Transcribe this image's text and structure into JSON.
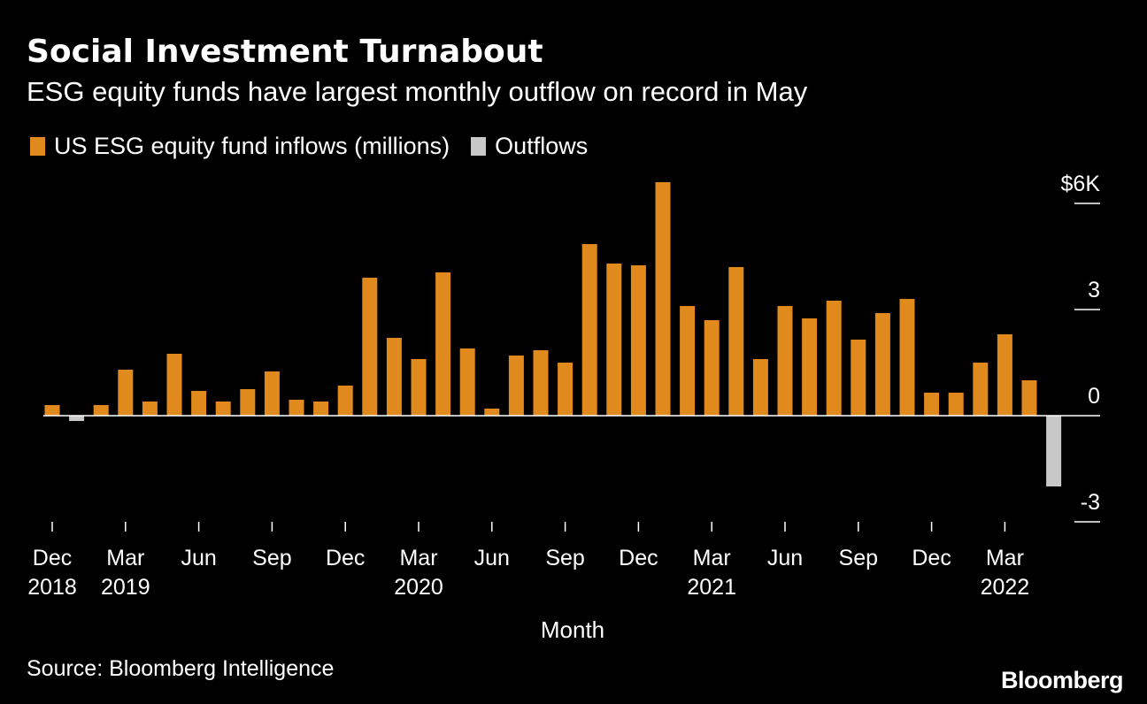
{
  "title": "Social Investment Turnabout",
  "subtitle": "ESG equity funds have largest monthly outflow on record in May",
  "source": "Source: Bloomberg Intelligence",
  "brand": "Bloomberg",
  "colors": {
    "inflow": "#e08a1e",
    "outflow": "#c8c8c8",
    "background": "#000000",
    "text": "#ffffff"
  },
  "chart_data": {
    "type": "bar",
    "title": "Social Investment Turnabout",
    "subtitle": "ESG equity funds have largest monthly outflow on record in May",
    "xlabel": "Month",
    "ylabel": "",
    "ylim": [
      -3,
      6
    ],
    "yticks": [
      {
        "value": 6,
        "label": "$6K"
      },
      {
        "value": 3,
        "label": "3"
      },
      {
        "value": 0,
        "label": "0"
      },
      {
        "value": -3,
        "label": "-3"
      }
    ],
    "legend": [
      {
        "name": "US ESG equity fund inflows (millions)",
        "color": "#e08a1e"
      },
      {
        "name": "Outflows",
        "color": "#c8c8c8"
      }
    ],
    "categories": [
      "Dec 2018",
      "Jan 2019",
      "Feb 2019",
      "Mar 2019",
      "Apr 2019",
      "May 2019",
      "Jun 2019",
      "Jul 2019",
      "Aug 2019",
      "Sep 2019",
      "Oct 2019",
      "Nov 2019",
      "Dec 2019",
      "Jan 2020",
      "Feb 2020",
      "Mar 2020",
      "Apr 2020",
      "May 2020",
      "Jun 2020",
      "Jul 2020",
      "Aug 2020",
      "Sep 2020",
      "Oct 2020",
      "Nov 2020",
      "Dec 2020",
      "Jan 2021",
      "Feb 2021",
      "Mar 2021",
      "Apr 2021",
      "May 2021",
      "Jun 2021",
      "Jul 2021",
      "Aug 2021",
      "Sep 2021",
      "Oct 2021",
      "Nov 2021",
      "Dec 2021",
      "Jan 2022",
      "Feb 2022",
      "Mar 2022",
      "Apr 2022",
      "May 2022"
    ],
    "values": [
      0.3,
      -0.15,
      0.3,
      1.3,
      0.4,
      1.75,
      0.7,
      0.4,
      0.75,
      1.25,
      0.45,
      0.4,
      0.85,
      3.9,
      2.2,
      1.6,
      4.05,
      1.9,
      0.2,
      1.7,
      1.85,
      1.5,
      4.85,
      4.3,
      4.25,
      6.6,
      3.1,
      2.7,
      4.2,
      1.6,
      3.1,
      2.75,
      3.25,
      2.15,
      2.9,
      3.3,
      0.65,
      0.65,
      1.5,
      2.3,
      1.0,
      -2.0
    ],
    "xticks": [
      {
        "index": 0,
        "month": "Dec",
        "year": "2018"
      },
      {
        "index": 3,
        "month": "Mar",
        "year": "2019"
      },
      {
        "index": 6,
        "month": "Jun",
        "year": ""
      },
      {
        "index": 9,
        "month": "Sep",
        "year": ""
      },
      {
        "index": 12,
        "month": "Dec",
        "year": ""
      },
      {
        "index": 15,
        "month": "Mar",
        "year": "2020"
      },
      {
        "index": 18,
        "month": "Jun",
        "year": ""
      },
      {
        "index": 21,
        "month": "Sep",
        "year": ""
      },
      {
        "index": 24,
        "month": "Dec",
        "year": ""
      },
      {
        "index": 27,
        "month": "Mar",
        "year": "2021"
      },
      {
        "index": 30,
        "month": "Jun",
        "year": ""
      },
      {
        "index": 33,
        "month": "Sep",
        "year": ""
      },
      {
        "index": 36,
        "month": "Dec",
        "year": ""
      },
      {
        "index": 39,
        "month": "Mar",
        "year": "2022"
      }
    ]
  }
}
